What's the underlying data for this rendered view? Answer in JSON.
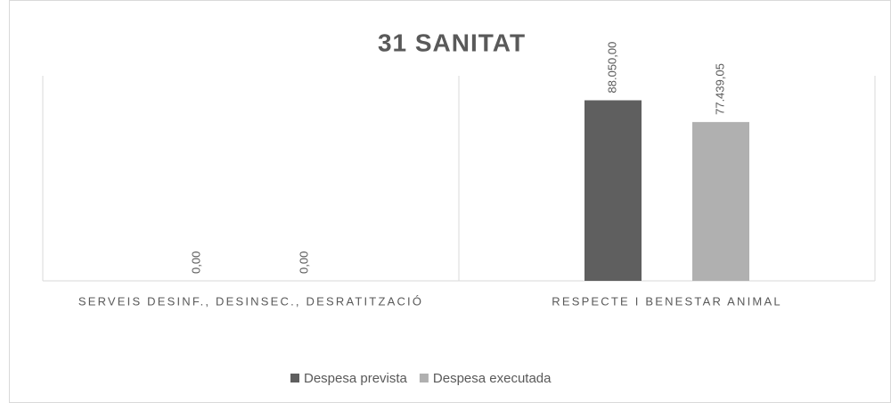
{
  "chart_data": {
    "type": "bar",
    "title": "31 SANITAT",
    "categories": [
      "SERVEIS DESINF., DESINSEC., DESRATITZACIÓ",
      "RESPECTE I BENESTAR ANIMAL"
    ],
    "series": [
      {
        "name": "Despesa prevista",
        "color": "#5f5f5f",
        "values": [
          0,
          88050
        ],
        "value_labels": [
          "0,00",
          "88.050,00"
        ]
      },
      {
        "name": "Despesa executada",
        "color": "#b0b0b0",
        "values": [
          0,
          77439.05
        ],
        "value_labels": [
          "0,00",
          "77.439,05"
        ]
      }
    ],
    "ylim": [
      0,
      100000
    ]
  }
}
